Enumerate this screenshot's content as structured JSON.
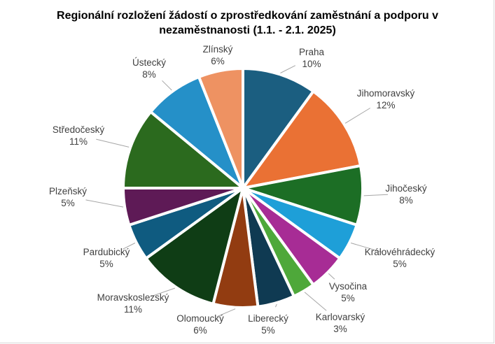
{
  "chart_data": {
    "type": "pie",
    "title_line1": "Regionální rozložení žádostí o zprostředkování zaměstnání a podporu v",
    "title_line2": "nezaměstnanosti (1.1. - 2.1. 2025)",
    "unit": "%",
    "slices": [
      {
        "label": "Praha",
        "value": 10,
        "color": "#1b5e80"
      },
      {
        "label": "Jihomoravský",
        "value": 12,
        "color": "#ea7134"
      },
      {
        "label": "Jihočeský",
        "value": 8,
        "color": "#1c6e25"
      },
      {
        "label": "Královéhrádecký",
        "value": 5,
        "color": "#1e9fd8"
      },
      {
        "label": "Vysočina",
        "value": 5,
        "color": "#a72c95"
      },
      {
        "label": "Karlovarský",
        "value": 3,
        "color": "#4ea83a"
      },
      {
        "label": "Liberecký",
        "value": 5,
        "color": "#0f3a52"
      },
      {
        "label": "Olomoucký",
        "value": 6,
        "color": "#923c11"
      },
      {
        "label": "Moravskoslezský",
        "value": 11,
        "color": "#0f3d15"
      },
      {
        "label": "Pardubický",
        "value": 5,
        "color": "#0f5b80"
      },
      {
        "label": "Plzeňský",
        "value": 5,
        "color": "#5e1a56"
      },
      {
        "label": "Středočeský",
        "value": 11,
        "color": "#2b6a1e"
      },
      {
        "label": "Ústecký",
        "value": 8,
        "color": "#2590c8"
      },
      {
        "label": "Zlínský",
        "value": 6,
        "color": "#ee9262"
      }
    ]
  }
}
